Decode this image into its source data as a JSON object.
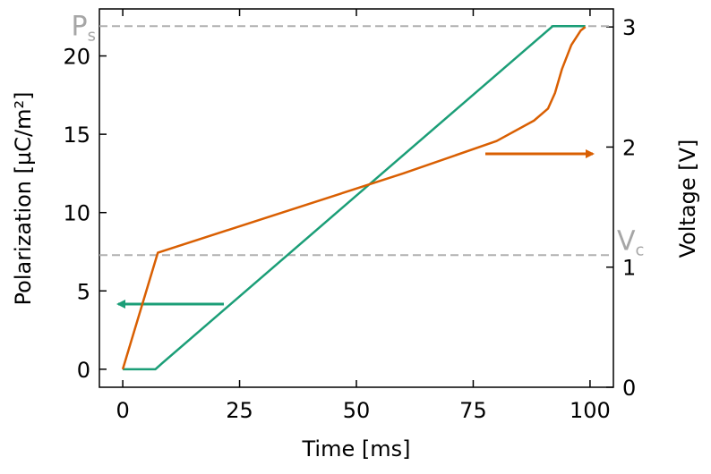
{
  "chart_data": {
    "type": "line",
    "x_label": "Time [ms]",
    "y_label": "Polarization [µC/m²]",
    "y2_label": "Voltage [V]",
    "xlim": [
      -5,
      105
    ],
    "ylim": [
      -1.15,
      23.0
    ],
    "y2lim": [
      0,
      3.15
    ],
    "xticks": [
      0,
      25,
      50,
      75,
      100
    ],
    "yticks": [
      0,
      5,
      10,
      15,
      20
    ],
    "y2ticks": [
      0,
      1,
      2,
      3
    ],
    "series": [
      {
        "color": "#1b9e77",
        "axis": "y",
        "x": [
          0,
          7,
          8.5,
          92,
          99
        ],
        "values": [
          0,
          0,
          0.4,
          21.9,
          21.9
        ]
      },
      {
        "color": "#d95f02",
        "axis": "y2",
        "x": [
          0,
          7.5,
          60,
          80,
          88,
          91,
          92.5,
          94,
          96,
          98,
          99
        ],
        "values": [
          0.15,
          1.12,
          1.78,
          2.05,
          2.22,
          2.32,
          2.45,
          2.65,
          2.85,
          2.97,
          3.0
        ]
      }
    ],
    "reference_lines": [
      {
        "axis": "y",
        "value": 21.9,
        "color": "#b0b0b0",
        "label": "P",
        "sub": "s"
      },
      {
        "axis": "y2",
        "value": 1.1,
        "color": "#b0b0b0",
        "label": "V",
        "sub": "c"
      }
    ]
  }
}
